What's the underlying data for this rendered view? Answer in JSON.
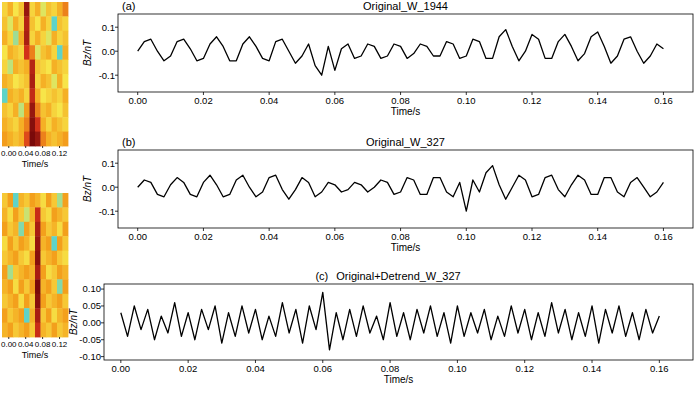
{
  "chart_data": [
    {
      "type": "heatmap",
      "x_label": "Time/s",
      "tick_labels": "x",
      "xlim": [
        -0.016,
        0.14
      ],
      "xticks": [
        {
          "value": 0,
          "label": "0.00"
        },
        {
          "value": 0.04,
          "label": "0.04"
        },
        {
          "value": 0.08,
          "label": "0.08"
        },
        {
          "value": 0.12,
          "label": "0.12"
        }
      ],
      "cells": [
        [
          0.5,
          0.6,
          0.45,
          0.55,
          0.95,
          0.5,
          0.6,
          0.4,
          0.55,
          0.5,
          0.6,
          0.7
        ],
        [
          0.55,
          0.4,
          0.6,
          0.5,
          0.9,
          0.55,
          0.45,
          0.6,
          0.5,
          0.2,
          0.55,
          0.5
        ],
        [
          0.6,
          0.5,
          0.3,
          0.6,
          0.92,
          0.5,
          0.6,
          0.5,
          0.4,
          0.6,
          0.5,
          0.55
        ],
        [
          0.45,
          0.6,
          0.55,
          0.5,
          0.85,
          0.7,
          0.4,
          0.55,
          0.6,
          0.5,
          0.2,
          0.6
        ],
        [
          0.5,
          0.35,
          0.6,
          0.55,
          0.6,
          0.9,
          0.55,
          0.5,
          0.45,
          0.6,
          0.55,
          0.5
        ],
        [
          0.6,
          0.55,
          0.45,
          0.5,
          0.55,
          0.92,
          0.5,
          0.6,
          0.55,
          0.4,
          0.6,
          0.45
        ],
        [
          0.2,
          0.6,
          0.55,
          0.6,
          0.5,
          0.88,
          0.6,
          0.45,
          0.5,
          0.55,
          0.5,
          0.6
        ],
        [
          0.55,
          0.5,
          0.6,
          0.35,
          0.65,
          0.95,
          0.7,
          0.55,
          0.6,
          0.5,
          0.45,
          0.55
        ],
        [
          0.6,
          0.55,
          0.5,
          0.6,
          0.7,
          0.98,
          0.85,
          0.6,
          0.5,
          0.6,
          0.55,
          0.5
        ],
        [
          0.65,
          0.6,
          0.55,
          0.6,
          0.8,
          1.0,
          0.95,
          0.7,
          0.6,
          0.55,
          0.6,
          0.65
        ]
      ]
    },
    {
      "type": "heatmap",
      "x_label": "Time/s",
      "tick_labels": "x",
      "xlim": [
        -0.016,
        0.14
      ],
      "xticks": [
        {
          "value": 0,
          "label": "0.00"
        },
        {
          "value": 0.04,
          "label": "0.04"
        },
        {
          "value": 0.08,
          "label": "0.08"
        },
        {
          "value": 0.12,
          "label": "0.12"
        }
      ],
      "cells": [
        [
          0.5,
          0.6,
          0.2,
          0.55,
          0.5,
          0.6,
          0.55,
          0.45,
          0.6,
          0.5,
          0.3,
          0.6
        ],
        [
          0.55,
          0.45,
          0.6,
          0.5,
          0.35,
          0.55,
          0.8,
          0.5,
          0.45,
          0.6,
          0.55,
          0.5
        ],
        [
          0.6,
          0.5,
          0.55,
          0.25,
          0.6,
          0.5,
          0.85,
          0.6,
          0.5,
          0.55,
          0.45,
          0.6
        ],
        [
          0.45,
          0.6,
          0.5,
          0.6,
          0.55,
          0.45,
          0.88,
          0.55,
          0.6,
          0.2,
          0.6,
          0.5
        ],
        [
          0.5,
          0.55,
          0.6,
          0.5,
          0.45,
          0.6,
          0.9,
          0.5,
          0.55,
          0.6,
          0.5,
          0.45
        ],
        [
          0.6,
          0.3,
          0.5,
          0.55,
          0.6,
          0.55,
          0.85,
          0.6,
          0.45,
          0.5,
          0.6,
          0.55
        ],
        [
          0.55,
          0.6,
          0.45,
          0.6,
          0.5,
          0.6,
          0.92,
          0.55,
          0.6,
          0.5,
          0.25,
          0.6
        ],
        [
          0.5,
          0.55,
          0.6,
          0.45,
          0.6,
          0.5,
          0.9,
          0.6,
          0.5,
          0.55,
          0.6,
          0.5
        ],
        [
          0.6,
          0.5,
          0.55,
          0.6,
          0.2,
          0.55,
          0.85,
          0.5,
          0.6,
          0.45,
          0.55,
          0.6
        ],
        [
          0.55,
          0.6,
          0.5,
          0.55,
          0.6,
          0.5,
          0.8,
          0.55,
          0.5,
          0.6,
          0.5,
          0.55
        ]
      ]
    },
    {
      "type": "line",
      "title": "Original_W_1944",
      "annotations": [
        "(a)"
      ],
      "x_label": "Time/s",
      "y_label": "Bz/nT",
      "color": "#000000",
      "xlim": [
        -0.006,
        0.169
      ],
      "ylim": [
        -0.17,
        0.155
      ],
      "xticks": [
        {
          "value": 0,
          "label": "0.00"
        },
        {
          "value": 0.02,
          "label": "0.02"
        },
        {
          "value": 0.04,
          "label": "0.04"
        },
        {
          "value": 0.06,
          "label": "0.06"
        },
        {
          "value": 0.08,
          "label": "0.08"
        },
        {
          "value": 0.1,
          "label": "0.10"
        },
        {
          "value": 0.12,
          "label": "0.12"
        },
        {
          "value": 0.14,
          "label": "0.14"
        },
        {
          "value": 0.16,
          "label": "0.16"
        }
      ],
      "yticks": [
        0.1,
        {
          "value": 0,
          "label": "0.0"
        },
        -0.1
      ],
      "x": [
        0,
        0.002,
        0.004,
        0.006,
        0.008,
        0.01,
        0.012,
        0.014,
        0.016,
        0.018,
        0.02,
        0.022,
        0.024,
        0.026,
        0.028,
        0.03,
        0.032,
        0.034,
        0.036,
        0.038,
        0.04,
        0.042,
        0.044,
        0.046,
        0.048,
        0.05,
        0.052,
        0.054,
        0.056,
        0.058,
        0.06,
        0.062,
        0.064,
        0.066,
        0.068,
        0.07,
        0.072,
        0.074,
        0.076,
        0.078,
        0.08,
        0.082,
        0.084,
        0.086,
        0.088,
        0.09,
        0.092,
        0.094,
        0.096,
        0.098,
        0.1,
        0.102,
        0.104,
        0.106,
        0.108,
        0.11,
        0.112,
        0.114,
        0.116,
        0.118,
        0.12,
        0.122,
        0.124,
        0.126,
        0.128,
        0.13,
        0.132,
        0.134,
        0.136,
        0.138,
        0.14,
        0.142,
        0.144,
        0.146,
        0.148,
        0.15,
        0.152,
        0.154,
        0.156,
        0.158,
        0.16
      ],
      "values": [
        0,
        0.04,
        0.05,
        0,
        -0.04,
        -0.02,
        0.04,
        0.05,
        0.01,
        -0.04,
        -0.03,
        0.03,
        0.06,
        0.02,
        -0.04,
        -0.04,
        0.03,
        0.06,
        0.02,
        -0.03,
        -0.04,
        0.04,
        0.05,
        0,
        -0.05,
        -0.02,
        0.03,
        -0.06,
        -0.1,
        0.02,
        -0.08,
        0.01,
        0.03,
        -0.03,
        -0.02,
        0.03,
        0.02,
        -0.03,
        -0.02,
        0.03,
        0.02,
        -0.03,
        -0.01,
        0.03,
        0.02,
        -0.02,
        -0.02,
        0.04,
        0.03,
        -0.03,
        -0.02,
        0.05,
        0.04,
        -0.03,
        -0.03,
        0.06,
        0.09,
        0.02,
        -0.04,
        0,
        0.07,
        0.05,
        -0.03,
        -0.03,
        0.04,
        0.07,
        0.02,
        -0.04,
        -0.01,
        0.06,
        0.08,
        0.02,
        -0.05,
        -0.02,
        0.05,
        0.06,
        0,
        -0.05,
        -0.02,
        0.03,
        0.01
      ]
    },
    {
      "type": "line",
      "title": "Original_W_327",
      "annotations": [
        "(b)"
      ],
      "x_label": "Time/s",
      "y_label": "Bz/nT",
      "color": "#000000",
      "xlim": [
        -0.006,
        0.169
      ],
      "ylim": [
        -0.17,
        0.155
      ],
      "xticks": [
        {
          "value": 0,
          "label": "0.00"
        },
        {
          "value": 0.02,
          "label": "0.02"
        },
        {
          "value": 0.04,
          "label": "0.04"
        },
        {
          "value": 0.06,
          "label": "0.06"
        },
        {
          "value": 0.08,
          "label": "0.08"
        },
        {
          "value": 0.1,
          "label": "0.10"
        },
        {
          "value": 0.12,
          "label": "0.12"
        },
        {
          "value": 0.14,
          "label": "0.14"
        },
        {
          "value": 0.16,
          "label": "0.16"
        }
      ],
      "yticks": [
        0.1,
        {
          "value": 0,
          "label": "0.0"
        },
        -0.1
      ],
      "x": [
        0,
        0.002,
        0.004,
        0.006,
        0.008,
        0.01,
        0.012,
        0.014,
        0.016,
        0.018,
        0.02,
        0.022,
        0.024,
        0.026,
        0.028,
        0.03,
        0.032,
        0.034,
        0.036,
        0.038,
        0.04,
        0.042,
        0.044,
        0.046,
        0.048,
        0.05,
        0.052,
        0.054,
        0.056,
        0.058,
        0.06,
        0.062,
        0.064,
        0.066,
        0.068,
        0.07,
        0.072,
        0.074,
        0.076,
        0.078,
        0.08,
        0.082,
        0.084,
        0.086,
        0.088,
        0.09,
        0.092,
        0.094,
        0.096,
        0.098,
        0.1,
        0.102,
        0.104,
        0.106,
        0.108,
        0.11,
        0.112,
        0.114,
        0.116,
        0.118,
        0.12,
        0.122,
        0.124,
        0.126,
        0.128,
        0.13,
        0.132,
        0.134,
        0.136,
        0.138,
        0.14,
        0.142,
        0.144,
        0.146,
        0.148,
        0.15,
        0.152,
        0.154,
        0.156,
        0.158,
        0.16
      ],
      "values": [
        0,
        0.03,
        0.02,
        -0.03,
        -0.04,
        0.01,
        0.04,
        0.02,
        -0.03,
        -0.04,
        0.02,
        0.05,
        0.01,
        -0.04,
        -0.03,
        0.03,
        0.05,
        0,
        -0.04,
        -0.02,
        0.04,
        0.05,
        -0.01,
        -0.05,
        -0.01,
        0.04,
        0.02,
        -0.04,
        -0.02,
        0.02,
        0.01,
        -0.02,
        -0.01,
        0.02,
        0.01,
        -0.02,
        0,
        0.03,
        0.02,
        -0.03,
        -0.02,
        0.04,
        0.03,
        -0.03,
        -0.03,
        0.04,
        0.04,
        -0.02,
        -0.04,
        0.02,
        -0.1,
        0.03,
        -0.02,
        0.06,
        0.09,
        0.01,
        -0.05,
        0,
        0.05,
        0.03,
        -0.04,
        -0.03,
        0.04,
        0.05,
        -0.01,
        -0.04,
        0.01,
        0.05,
        0.03,
        -0.03,
        -0.03,
        0.04,
        0.04,
        -0.02,
        -0.04,
        0.02,
        0.04,
        0,
        -0.04,
        -0.02,
        0.02
      ]
    },
    {
      "type": "line",
      "title": "Original+Detrend_W_327",
      "annotations": [
        "(c)"
      ],
      "x_label": "Time/s",
      "y_label": "Bz/nT",
      "color": "#000000",
      "xlim": [
        -0.005,
        0.17
      ],
      "ylim": [
        -0.11,
        0.115
      ],
      "xticks": [
        {
          "value": 0,
          "label": "0.00"
        },
        {
          "value": 0.02,
          "label": "0.02"
        },
        {
          "value": 0.04,
          "label": "0.04"
        },
        {
          "value": 0.06,
          "label": "0.06"
        },
        {
          "value": 0.08,
          "label": "0.08"
        },
        {
          "value": 0.1,
          "label": "0.10"
        },
        {
          "value": 0.12,
          "label": "0.12"
        },
        {
          "value": 0.14,
          "label": "0.14"
        },
        {
          "value": 0.16,
          "label": "0.16"
        }
      ],
      "yticks": [
        {
          "value": 0.1,
          "label": "0.10"
        },
        {
          "value": 0.05,
          "label": "0.05"
        },
        {
          "value": 0,
          "label": "0.00"
        },
        {
          "value": -0.05,
          "label": "-0.05"
        },
        {
          "value": -0.1,
          "label": "-0.10"
        }
      ],
      "x": [
        0,
        0.002,
        0.004,
        0.006,
        0.008,
        0.01,
        0.012,
        0.014,
        0.016,
        0.018,
        0.02,
        0.022,
        0.024,
        0.026,
        0.028,
        0.03,
        0.032,
        0.034,
        0.036,
        0.038,
        0.04,
        0.042,
        0.044,
        0.046,
        0.048,
        0.05,
        0.052,
        0.054,
        0.056,
        0.058,
        0.06,
        0.062,
        0.064,
        0.066,
        0.068,
        0.07,
        0.072,
        0.074,
        0.076,
        0.078,
        0.08,
        0.082,
        0.084,
        0.086,
        0.088,
        0.09,
        0.092,
        0.094,
        0.096,
        0.098,
        0.1,
        0.102,
        0.104,
        0.106,
        0.108,
        0.11,
        0.112,
        0.114,
        0.116,
        0.118,
        0.12,
        0.122,
        0.124,
        0.126,
        0.128,
        0.13,
        0.132,
        0.134,
        0.136,
        0.138,
        0.14,
        0.142,
        0.144,
        0.146,
        0.148,
        0.15,
        0.152,
        0.154,
        0.156,
        0.158,
        0.16
      ],
      "values": [
        0.03,
        -0.04,
        0.05,
        -0.02,
        0.04,
        -0.05,
        0.02,
        -0.03,
        0.06,
        -0.04,
        0.03,
        -0.05,
        0.04,
        -0.02,
        0.05,
        -0.06,
        0.03,
        -0.04,
        0.05,
        -0.03,
        0.04,
        -0.05,
        0.02,
        -0.04,
        0.06,
        -0.03,
        0.04,
        -0.06,
        0.05,
        -0.02,
        0.09,
        -0.08,
        0.03,
        -0.05,
        0.04,
        -0.04,
        0.05,
        -0.03,
        0.02,
        -0.05,
        0.06,
        -0.04,
        0.03,
        -0.05,
        0.04,
        -0.03,
        0.05,
        -0.04,
        0.03,
        -0.06,
        0.05,
        -0.04,
        0.03,
        -0.03,
        0.04,
        -0.05,
        0.02,
        -0.04,
        0.05,
        -0.03,
        0.04,
        -0.05,
        0.03,
        -0.04,
        0.06,
        -0.03,
        0.04,
        -0.05,
        0.03,
        -0.04,
        0.05,
        -0.06,
        0.04,
        -0.03,
        0.05,
        -0.04,
        0.03,
        -0.05,
        0.04,
        -0.03,
        0.02
      ]
    }
  ]
}
